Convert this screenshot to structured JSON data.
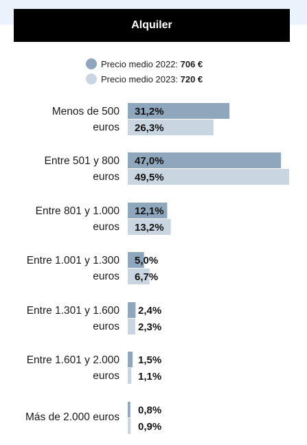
{
  "header": {
    "title": "Alquiler"
  },
  "legend": [
    {
      "prefix": "Precio medio 2022: ",
      "value": "706 €",
      "color": "#8fa7bd"
    },
    {
      "prefix": "Precio medio 2023: ",
      "value": "720 €",
      "color": "#c9d6e2"
    }
  ],
  "chart_data": {
    "type": "bar",
    "orientation": "horizontal",
    "title": "Alquiler",
    "categories": [
      [
        "Menos de 500",
        "euros"
      ],
      [
        "Entre 501 y 800",
        "euros"
      ],
      [
        "Entre 801 y 1.000",
        "euros"
      ],
      [
        "Entre 1.001 y 1.300",
        "euros"
      ],
      [
        "Entre 1.301 y 1.600",
        "euros"
      ],
      [
        "Entre 1.601 y 2.000",
        "euros"
      ],
      [
        "Más de 2.000 euros"
      ]
    ],
    "series": [
      {
        "name": "Precio medio 2022: 706 €",
        "color": "#8fa7bd",
        "values": [
          31.2,
          47.0,
          12.1,
          5.0,
          2.4,
          1.5,
          0.8
        ],
        "labels": [
          "31,2%",
          "47,0%",
          "12,1%",
          "5,0%",
          "2,4%",
          "1,5%",
          "0,8%"
        ]
      },
      {
        "name": "Precio medio 2023: 720 €",
        "color": "#c9d6e2",
        "values": [
          26.3,
          49.5,
          13.2,
          6.7,
          2.3,
          1.1,
          0.9
        ],
        "labels": [
          "26,3%",
          "49,5%",
          "13,2%",
          "6,7%",
          "2,3%",
          "1,1%",
          "0,9%"
        ]
      }
    ],
    "xlim": [
      0,
      49.5
    ],
    "grid": false,
    "legend_position": "top"
  }
}
